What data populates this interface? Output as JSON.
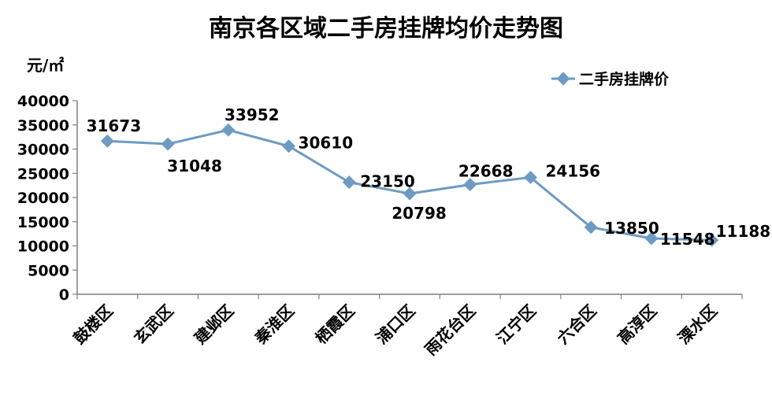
{
  "chart_data": {
    "type": "line",
    "title": "南京各区域二手房挂牌均价走势图",
    "ylabel": "元/㎡",
    "xlabel": "",
    "categories": [
      "鼓楼区",
      "玄武区",
      "建邺区",
      "秦淮区",
      "栖霞区",
      "浦口区",
      "雨花台区",
      "江宁区",
      "六合区",
      "高淳区",
      "溧水区"
    ],
    "series": [
      {
        "name": "二手房挂牌价",
        "values": [
          31673,
          31048,
          33952,
          30610,
          23150,
          20798,
          22668,
          24156,
          13850,
          11548,
          11188
        ],
        "color": "#6d9bc3"
      }
    ],
    "ylim": [
      0,
      40000
    ],
    "yticks": [
      "0",
      "5000",
      "10000",
      "15000",
      "20000",
      "25000",
      "30000",
      "35000",
      "40000"
    ],
    "data_labels": [
      "31673",
      "31048",
      "33952",
      "30610",
      "23150",
      "20798",
      "22668",
      "24156",
      "13850",
      "11548",
      "11188"
    ],
    "grid": false,
    "legend_position": "top-right"
  }
}
